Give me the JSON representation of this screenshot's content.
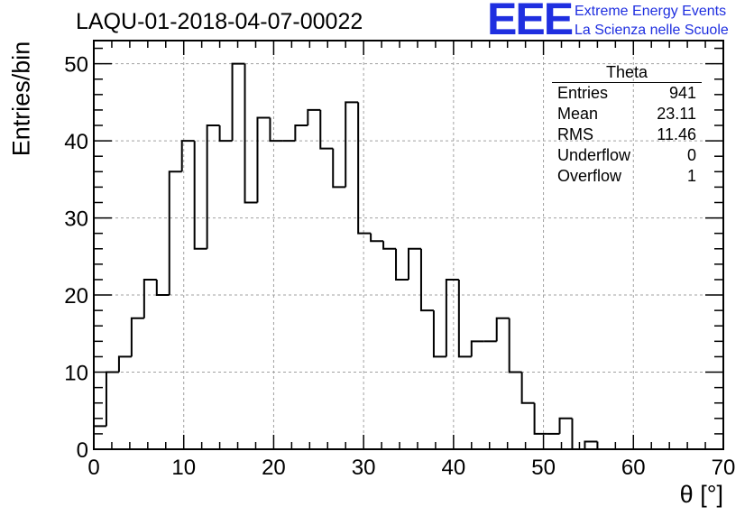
{
  "header": {
    "title": "LAQU-01-2018-04-07-00022"
  },
  "logo": {
    "mark": "EEE",
    "line1": "Extreme Energy Events",
    "line2": "La Scienza nelle Scuole",
    "color": "#1f2fe0"
  },
  "stats": {
    "title": "Theta",
    "rows": [
      {
        "label": "Entries",
        "value": "941"
      },
      {
        "label": "Mean",
        "value": "23.11"
      },
      {
        "label": "RMS",
        "value": "11.46"
      },
      {
        "label": "Underflow",
        "value": "0"
      },
      {
        "label": "Overflow",
        "value": "1"
      }
    ]
  },
  "chart_data": {
    "type": "bar",
    "histogram": true,
    "title": "LAQU-01-2018-04-07-00022",
    "xlabel": "θ [°]",
    "ylabel": "Entries/bin",
    "xlim": [
      0,
      70
    ],
    "ylim": [
      0,
      53
    ],
    "grid": true,
    "bin_width": 1.4,
    "bin_edges_start": 0,
    "values": [
      3,
      10,
      12,
      17,
      22,
      20,
      36,
      40,
      26,
      42,
      40,
      50,
      32,
      43,
      40,
      40,
      42,
      44,
      39,
      34,
      45,
      28,
      27,
      26,
      22,
      26,
      18,
      12,
      22,
      12,
      14,
      14,
      17,
      10,
      6,
      2,
      2,
      4,
      0,
      1,
      0,
      0,
      0,
      0,
      0,
      0,
      0,
      0,
      0,
      0
    ],
    "x_ticks": [
      "0",
      "10",
      "20",
      "30",
      "40",
      "50",
      "60",
      "70"
    ],
    "y_ticks": [
      "0",
      "10",
      "20",
      "30",
      "40",
      "50"
    ],
    "line_color": "#000000"
  }
}
